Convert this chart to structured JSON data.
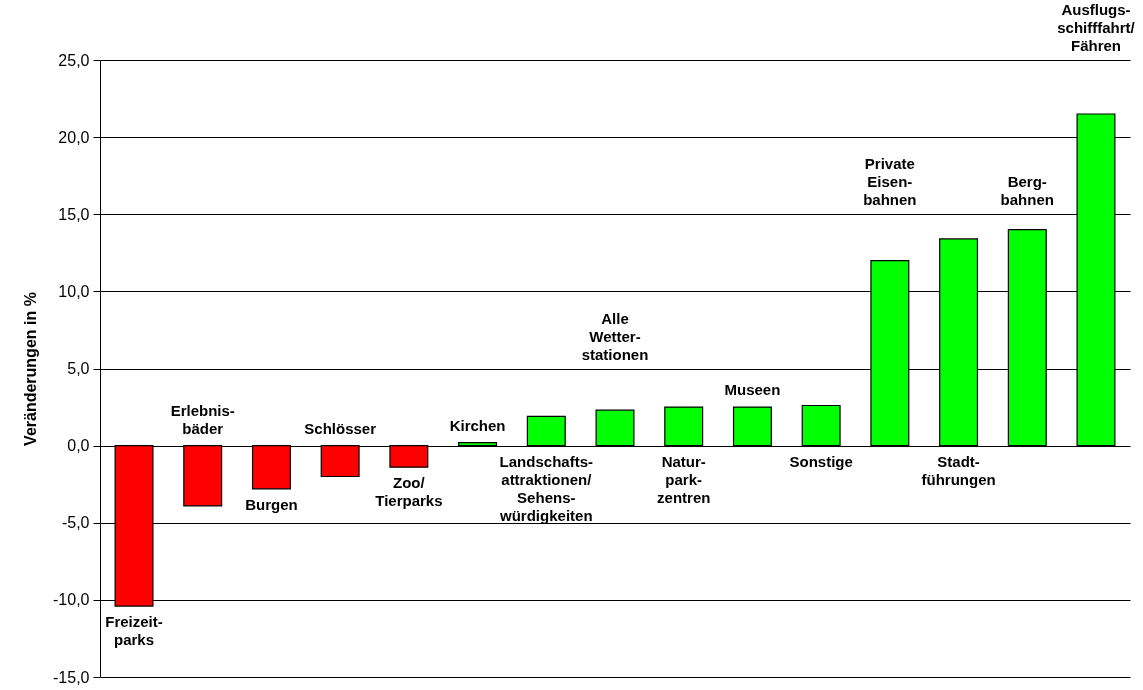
{
  "chart_data": {
    "type": "bar",
    "ylabel": "Veränderungen in %",
    "categories": [
      "Freizeit-\nparks",
      "Erlebnis-\nbäder",
      "Burgen",
      "Schlösser",
      "Zoo/\nTierparks",
      "Kirchen",
      "Landschafts-\nattraktionen/\nSehens-\nwürdigkeiten",
      "Alle\nWetter-\nstationen",
      "Natur-\npark-\nzentren",
      "Museen",
      "Sonstige",
      "Private\nEisen-\nbahnen",
      "Stadt-\nführungen",
      "Berg-\nbahnen",
      "Ausflugs-\nschifffahrt/\nFähren"
    ],
    "values": [
      -10.4,
      -3.9,
      -2.8,
      -2.0,
      -1.4,
      0.2,
      1.9,
      2.3,
      2.5,
      2.5,
      2.6,
      12.0,
      13.4,
      14.0,
      21.5
    ],
    "colors": [
      "#ff0000",
      "#ff0000",
      "#ff0000",
      "#ff0000",
      "#ff0000",
      "#00ff00",
      "#00ff00",
      "#00ff00",
      "#00ff00",
      "#00ff00",
      "#00ff00",
      "#00ff00",
      "#00ff00",
      "#00ff00",
      "#00ff00"
    ],
    "ylim": [
      -15,
      25
    ],
    "yticks": [
      {
        "value": -15,
        "label": "-15,0"
      },
      {
        "value": -10,
        "label": "-10,0"
      },
      {
        "value": -5,
        "label": "-5,0"
      },
      {
        "value": 0,
        "label": "0,0"
      },
      {
        "value": 5,
        "label": "5,0"
      },
      {
        "value": 10,
        "label": "10,0"
      },
      {
        "value": 15,
        "label": "15,0"
      },
      {
        "value": 20,
        "label": "20,0"
      },
      {
        "value": 25,
        "label": "25,0"
      }
    ],
    "grid": "y"
  }
}
